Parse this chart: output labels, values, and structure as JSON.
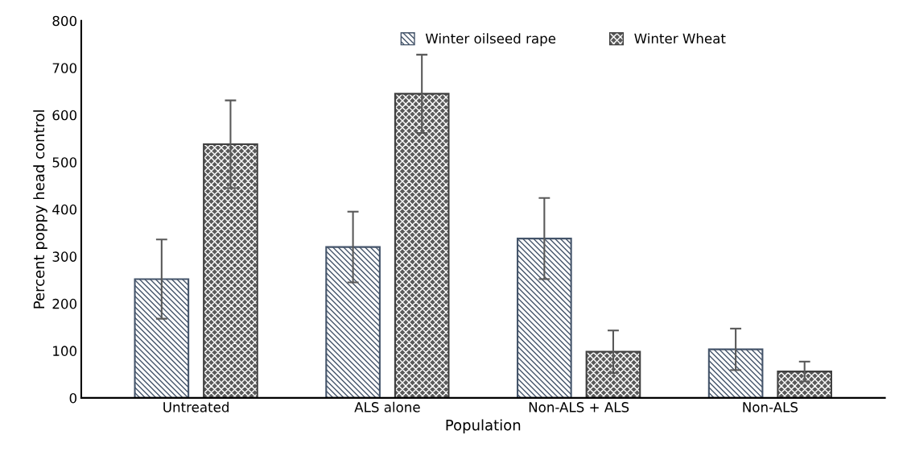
{
  "chart_data": {
    "type": "bar",
    "xlabel": "Population",
    "ylabel": "Percent poppy head control",
    "categories": [
      "Untreated",
      "ALS alone",
      "Non-ALS + ALS",
      "Non-ALS"
    ],
    "series": [
      {
        "name": "Winter oilseed rape",
        "color": "#44546a",
        "values": [
          252,
          320,
          338,
          103
        ],
        "errors": [
          84,
          75,
          86,
          44
        ]
      },
      {
        "name": "Winter Wheat",
        "color": "#404040",
        "values": [
          538,
          645,
          98,
          56
        ],
        "errors": [
          93,
          83,
          45,
          21
        ]
      }
    ],
    "ylim": [
      0,
      800
    ],
    "yticks": [
      0,
      100,
      200,
      300,
      400,
      500,
      600,
      700,
      800
    ],
    "grid": false,
    "legend": "top"
  }
}
